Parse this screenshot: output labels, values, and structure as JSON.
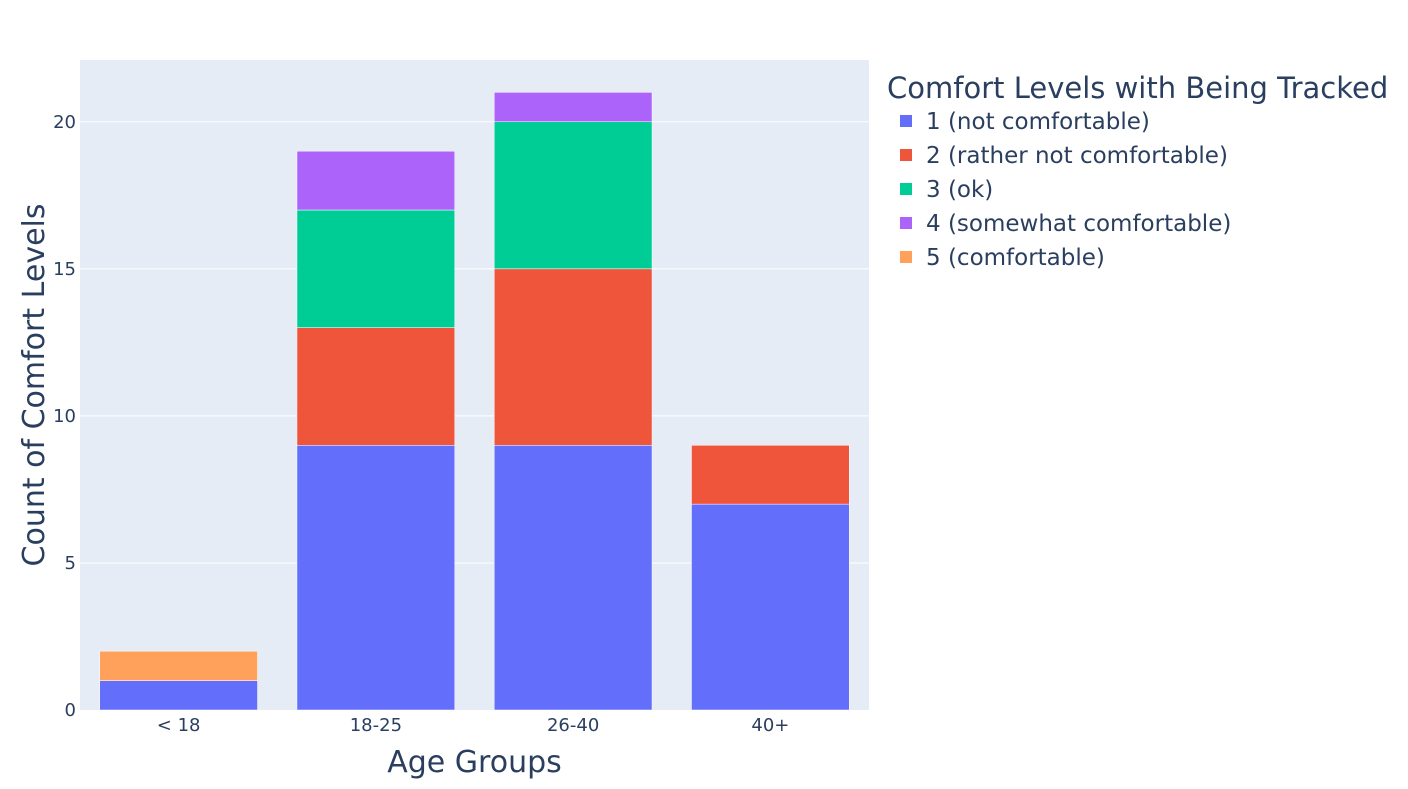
{
  "chart_data": {
    "type": "bar",
    "barmode": "stack",
    "categories": [
      "< 18",
      "18-25",
      "26-40",
      "40+"
    ],
    "series": [
      {
        "name": "1 (not comfortable)",
        "color": "#636efa",
        "values": [
          1,
          9,
          9,
          7
        ]
      },
      {
        "name": "2 (rather not comfortable)",
        "color": "#ef553b",
        "values": [
          0,
          4,
          6,
          2
        ]
      },
      {
        "name": "3 (ok)",
        "color": "#00cc96",
        "values": [
          0,
          4,
          5,
          0
        ]
      },
      {
        "name": "4 (somewhat comfortable)",
        "color": "#ab63fa",
        "values": [
          0,
          2,
          1,
          0
        ]
      },
      {
        "name": "5 (comfortable)",
        "color": "#ffa15a",
        "values": [
          1,
          0,
          0,
          0
        ]
      }
    ],
    "xlabel": "Age Groups",
    "ylabel": "Count of Comfort Levels",
    "ylim": [
      0,
      22.1
    ],
    "yticks": [
      0,
      5,
      10,
      15,
      20
    ],
    "legend_title": "Comfort Levels with Being Tracked",
    "legend_position": "top-right",
    "grid": true,
    "plot_background": "#e5ecf6"
  }
}
